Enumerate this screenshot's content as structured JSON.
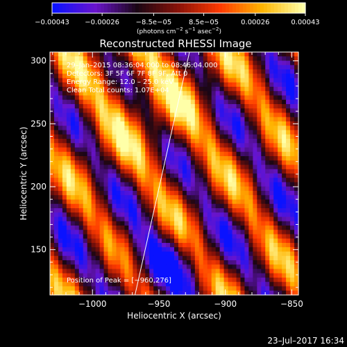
{
  "chart_data": {
    "type": "heatmap",
    "title": "Reconstructed RHESSI Image",
    "xlabel": "Heliocentric X (arcsec)",
    "ylabel": "Heliocentric Y (arcsec)",
    "xlim": [
      -1032,
      -845
    ],
    "ylim": [
      114,
      307
    ],
    "xticks": [
      -1000,
      -950,
      -900,
      -850
    ],
    "xtick_labels": [
      "−1000",
      "−950",
      "−900",
      "−850"
    ],
    "yticks": [
      150,
      200,
      250,
      300
    ],
    "ytick_labels": [
      "150",
      "200",
      "250",
      "300"
    ],
    "colorbar": {
      "range": [
        -0.00043,
        0.00043
      ],
      "ticks": [
        -0.00043,
        -0.00026,
        -8.5e-05,
        8.5e-05,
        0.00026,
        0.00043
      ],
      "tick_labels": [
        "−0.00043",
        "−0.00026",
        "−8.5e−05",
        "8.5e−05",
        "0.00026",
        "0.00043"
      ],
      "unit_main": "(photons cm",
      "unit_exp1": "−2",
      "unit_mid1": " s",
      "unit_exp2": "−1",
      "unit_mid2": " asec",
      "unit_exp3": "−2",
      "unit_end": ")"
    },
    "annotations": [
      "29–Jan–2015 08:36:04.000 to 08:46:04.000",
      "Detectors: 3F 5F 6F 7F 8F 9F, Att 0",
      "Energy Range: 12.0 – 25.0 keV",
      "Clean    Total counts: 1.07E+04"
    ],
    "peak_label": "Position of Peak = [−960,276]",
    "peak_position": [
      -960,
      276
    ],
    "limb_line": [
      [
        -968,
        114
      ],
      [
        -927,
        307
      ]
    ],
    "colors": {
      "stops": [
        "#0a12ff",
        "#6a14cc",
        "#1a0614",
        "#8a1208",
        "#ff3a00",
        "#ffb400",
        "#ffffa8"
      ]
    },
    "grid": false
  },
  "footer_timestamp": "23–Jul–2017 16:34"
}
